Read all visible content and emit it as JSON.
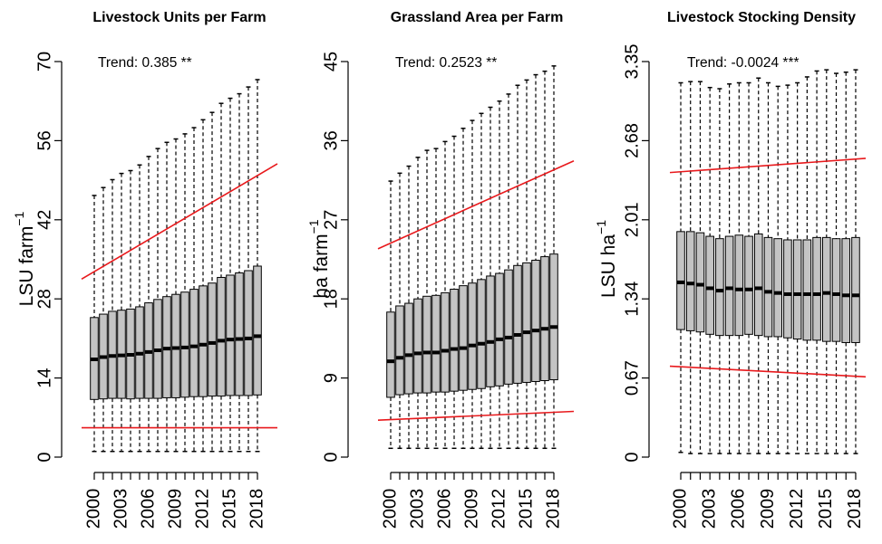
{
  "years": [
    2000,
    2001,
    2002,
    2003,
    2004,
    2005,
    2006,
    2007,
    2008,
    2009,
    2010,
    2011,
    2012,
    2013,
    2014,
    2015,
    2016,
    2017,
    2018
  ],
  "year_labels": [
    "2000",
    "2003",
    "2006",
    "2009",
    "2012",
    "2015",
    "2018"
  ],
  "chart_data": [
    {
      "type": "box",
      "title": "Livestock Units per Farm",
      "ylabel": "LSU farm",
      "ylabel_sup": "−1",
      "trend_label": "Trend:",
      "trend_value": "0.385 **",
      "ylim": [
        0,
        70
      ],
      "yticks": [
        "0",
        "14",
        "28",
        "42",
        "56",
        "70"
      ],
      "median": [
        17.3,
        17.7,
        17.9,
        18.0,
        18.1,
        18.3,
        18.6,
        18.9,
        19.2,
        19.3,
        19.4,
        19.6,
        19.9,
        20.2,
        20.6,
        20.8,
        20.9,
        21.0,
        21.4
      ],
      "q1": [
        10.2,
        10.3,
        10.4,
        10.4,
        10.3,
        10.4,
        10.4,
        10.4,
        10.5,
        10.5,
        10.6,
        10.7,
        10.7,
        10.8,
        10.8,
        10.9,
        10.9,
        10.9,
        11.0
      ],
      "q3": [
        24.7,
        25.3,
        25.8,
        26.0,
        26.2,
        26.6,
        27.3,
        27.9,
        28.4,
        28.8,
        29.2,
        29.7,
        30.3,
        30.8,
        31.8,
        32.2,
        32.6,
        33.0,
        33.8
      ],
      "upper_whisker": [
        46.3,
        47.7,
        49.1,
        50.2,
        50.7,
        51.7,
        53.2,
        54.6,
        55.7,
        56.3,
        57.2,
        58.3,
        59.7,
        61.0,
        62.6,
        63.5,
        64.3,
        65.5,
        66.8
      ],
      "lower_whisker": [
        1.0,
        1.0,
        1.0,
        1.0,
        1.0,
        1.0,
        1.0,
        1.0,
        1.0,
        1.0,
        1.0,
        1.0,
        1.0,
        1.0,
        1.0,
        1.0,
        1.0,
        1.0,
        1.0
      ],
      "trend_upper": [
        31.5,
        51.9
      ],
      "trend_lower": [
        5.2,
        5.2
      ]
    },
    {
      "type": "box",
      "title": "Grassland Area per Farm",
      "ylabel": "ha farm",
      "ylabel_sup": "−1",
      "trend_label": "Trend:",
      "trend_value": "0.2523 **",
      "ylim": [
        0,
        45
      ],
      "yticks": [
        "0",
        "9",
        "18",
        "27",
        "36",
        "45"
      ],
      "median": [
        10.9,
        11.3,
        11.6,
        11.8,
        11.9,
        11.9,
        12.1,
        12.3,
        12.4,
        12.7,
        12.9,
        13.1,
        13.4,
        13.6,
        13.9,
        14.2,
        14.4,
        14.6,
        14.8
      ],
      "q1": [
        6.8,
        7.1,
        7.2,
        7.3,
        7.3,
        7.4,
        7.4,
        7.5,
        7.6,
        7.7,
        7.8,
        8.0,
        8.1,
        8.3,
        8.4,
        8.5,
        8.6,
        8.7,
        8.8
      ],
      "q3": [
        16.5,
        17.2,
        17.5,
        18.0,
        18.3,
        18.4,
        18.7,
        19.1,
        19.5,
        19.8,
        20.2,
        20.6,
        20.9,
        21.3,
        21.8,
        22.1,
        22.4,
        22.8,
        23.1
      ],
      "upper_whisker": [
        31.4,
        32.3,
        33.1,
        34.1,
        34.9,
        35.1,
        35.9,
        36.5,
        37.4,
        38.3,
        39.1,
        39.8,
        40.5,
        41.3,
        42.3,
        42.9,
        43.5,
        43.9,
        44.5
      ],
      "lower_whisker": [
        1.0,
        1.0,
        1.0,
        1.0,
        1.0,
        1.0,
        1.0,
        1.0,
        1.0,
        1.0,
        1.0,
        1.0,
        1.0,
        1.0,
        1.0,
        1.0,
        1.0,
        1.0,
        1.0
      ],
      "trend_upper": [
        23.7,
        33.7
      ],
      "trend_lower": [
        4.2,
        5.2
      ]
    },
    {
      "type": "box",
      "title": "Livestock Stocking Density",
      "ylabel": "LSU ha",
      "ylabel_sup": "−1",
      "trend_label": "Trend:",
      "trend_value": "-0.0024 ***",
      "ylim": [
        0,
        3.35
      ],
      "yticks": [
        "0",
        "0.67",
        "1.34",
        "2.01",
        "2.68",
        "3.35"
      ],
      "median": [
        1.48,
        1.47,
        1.46,
        1.43,
        1.41,
        1.43,
        1.42,
        1.42,
        1.43,
        1.4,
        1.39,
        1.38,
        1.38,
        1.38,
        1.38,
        1.39,
        1.38,
        1.37,
        1.37
      ],
      "q1": [
        1.08,
        1.07,
        1.06,
        1.04,
        1.03,
        1.03,
        1.03,
        1.04,
        1.03,
        1.02,
        1.02,
        1.01,
        1.0,
        0.99,
        0.99,
        0.98,
        0.98,
        0.97,
        0.97
      ],
      "q3": [
        1.91,
        1.91,
        1.9,
        1.87,
        1.85,
        1.87,
        1.88,
        1.87,
        1.89,
        1.86,
        1.85,
        1.84,
        1.84,
        1.84,
        1.86,
        1.86,
        1.85,
        1.85,
        1.86
      ],
      "upper_whisker": [
        3.17,
        3.18,
        3.18,
        3.13,
        3.12,
        3.16,
        3.17,
        3.17,
        3.21,
        3.17,
        3.14,
        3.15,
        3.17,
        3.22,
        3.27,
        3.28,
        3.25,
        3.26,
        3.28
      ],
      "lower_whisker": [
        0.04,
        0.03,
        0.03,
        0.03,
        0.03,
        0.03,
        0.03,
        0.03,
        0.03,
        0.03,
        0.03,
        0.03,
        0.03,
        0.03,
        0.03,
        0.03,
        0.03,
        0.03,
        0.03
      ],
      "trend_upper": [
        2.41,
        2.53
      ],
      "trend_lower": [
        0.77,
        0.68
      ]
    }
  ]
}
